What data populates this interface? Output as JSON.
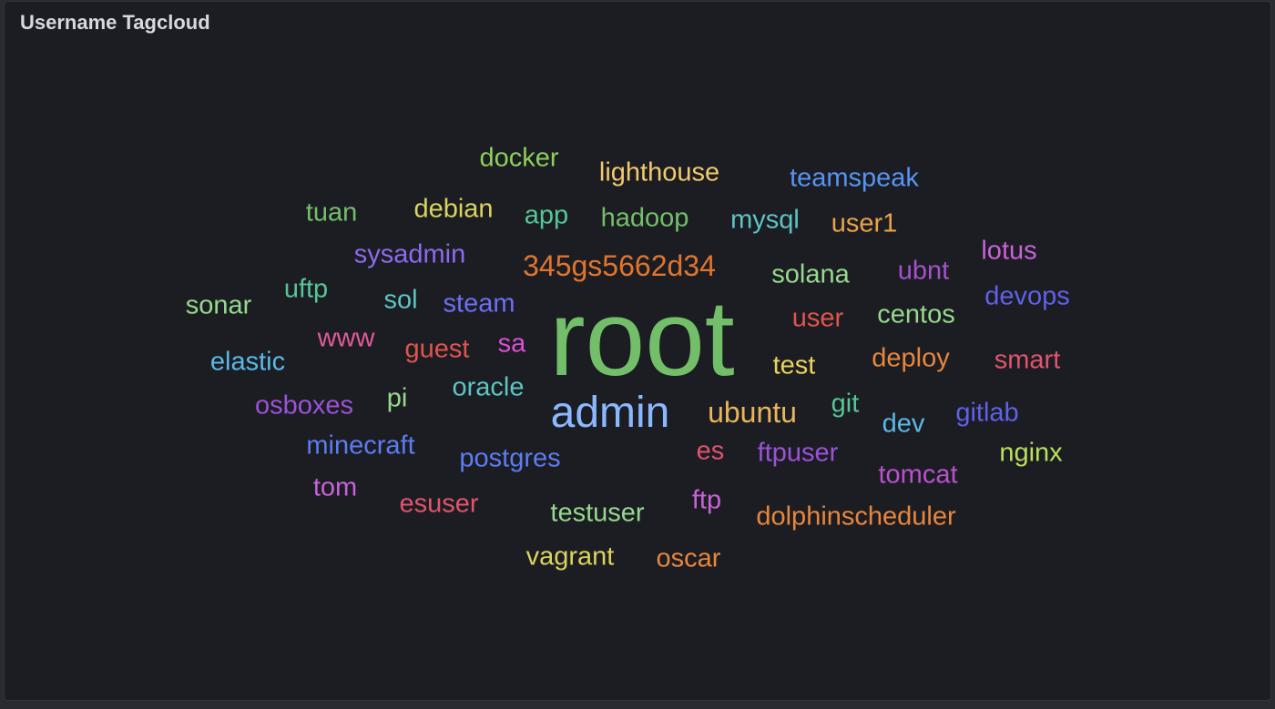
{
  "panel": {
    "title": "Username Tagcloud"
  },
  "tags": [
    {
      "text": "root",
      "color": "#73bf69"
    },
    {
      "text": "admin",
      "color": "#8ab8ff"
    },
    {
      "text": "345gs5662d34",
      "color": "#e0752d"
    },
    {
      "text": "ubuntu",
      "color": "#e8b65c"
    },
    {
      "text": "docker",
      "color": "#8ccf5a"
    },
    {
      "text": "lighthouse",
      "color": "#f2c96d"
    },
    {
      "text": "teamspeak",
      "color": "#5794f2"
    },
    {
      "text": "tuan",
      "color": "#73bf69"
    },
    {
      "text": "debian",
      "color": "#d9d45e"
    },
    {
      "text": "app",
      "color": "#56c596"
    },
    {
      "text": "hadoop",
      "color": "#73bf69"
    },
    {
      "text": "mysql",
      "color": "#5dc4c4"
    },
    {
      "text": "user1",
      "color": "#e8a44a"
    },
    {
      "text": "sysadmin",
      "color": "#8a6bf0"
    },
    {
      "text": "lotus",
      "color": "#c862d9"
    },
    {
      "text": "solana",
      "color": "#96d98d"
    },
    {
      "text": "ubnt",
      "color": "#a352cc"
    },
    {
      "text": "sonar",
      "color": "#96d98d"
    },
    {
      "text": "uftp",
      "color": "#56c596"
    },
    {
      "text": "sol",
      "color": "#5dc4c4"
    },
    {
      "text": "steam",
      "color": "#6e6ef5"
    },
    {
      "text": "devops",
      "color": "#6060e8"
    },
    {
      "text": "user",
      "color": "#e0544d"
    },
    {
      "text": "centos",
      "color": "#96d98d"
    },
    {
      "text": "www",
      "color": "#e05a9a"
    },
    {
      "text": "sa",
      "color": "#d94fd4"
    },
    {
      "text": "guest",
      "color": "#e0544d"
    },
    {
      "text": "elastic",
      "color": "#5ab8e8"
    },
    {
      "text": "test",
      "color": "#e8d45c"
    },
    {
      "text": "deploy",
      "color": "#e8863c"
    },
    {
      "text": "smart",
      "color": "#e0546e"
    },
    {
      "text": "osboxes",
      "color": "#9a52d9"
    },
    {
      "text": "pi",
      "color": "#96d98d"
    },
    {
      "text": "oracle",
      "color": "#5dc4c4"
    },
    {
      "text": "git",
      "color": "#56c596"
    },
    {
      "text": "dev",
      "color": "#5ab8e8"
    },
    {
      "text": "gitlab",
      "color": "#6060e8"
    },
    {
      "text": "minecraft",
      "color": "#5c7cf2"
    },
    {
      "text": "es",
      "color": "#e0546e"
    },
    {
      "text": "ftpuser",
      "color": "#9a52d9"
    },
    {
      "text": "nginx",
      "color": "#b8e05c"
    },
    {
      "text": "postgres",
      "color": "#5c7cf2"
    },
    {
      "text": "tomcat",
      "color": "#b852cc"
    },
    {
      "text": "tom",
      "color": "#c862d9"
    },
    {
      "text": "esuser",
      "color": "#e0546e"
    },
    {
      "text": "testuser",
      "color": "#96d98d"
    },
    {
      "text": "ftp",
      "color": "#c862d9"
    },
    {
      "text": "dolphinscheduler",
      "color": "#e8863c"
    },
    {
      "text": "vagrant",
      "color": "#d9d45e"
    },
    {
      "text": "oscar",
      "color": "#e8863c"
    }
  ]
}
